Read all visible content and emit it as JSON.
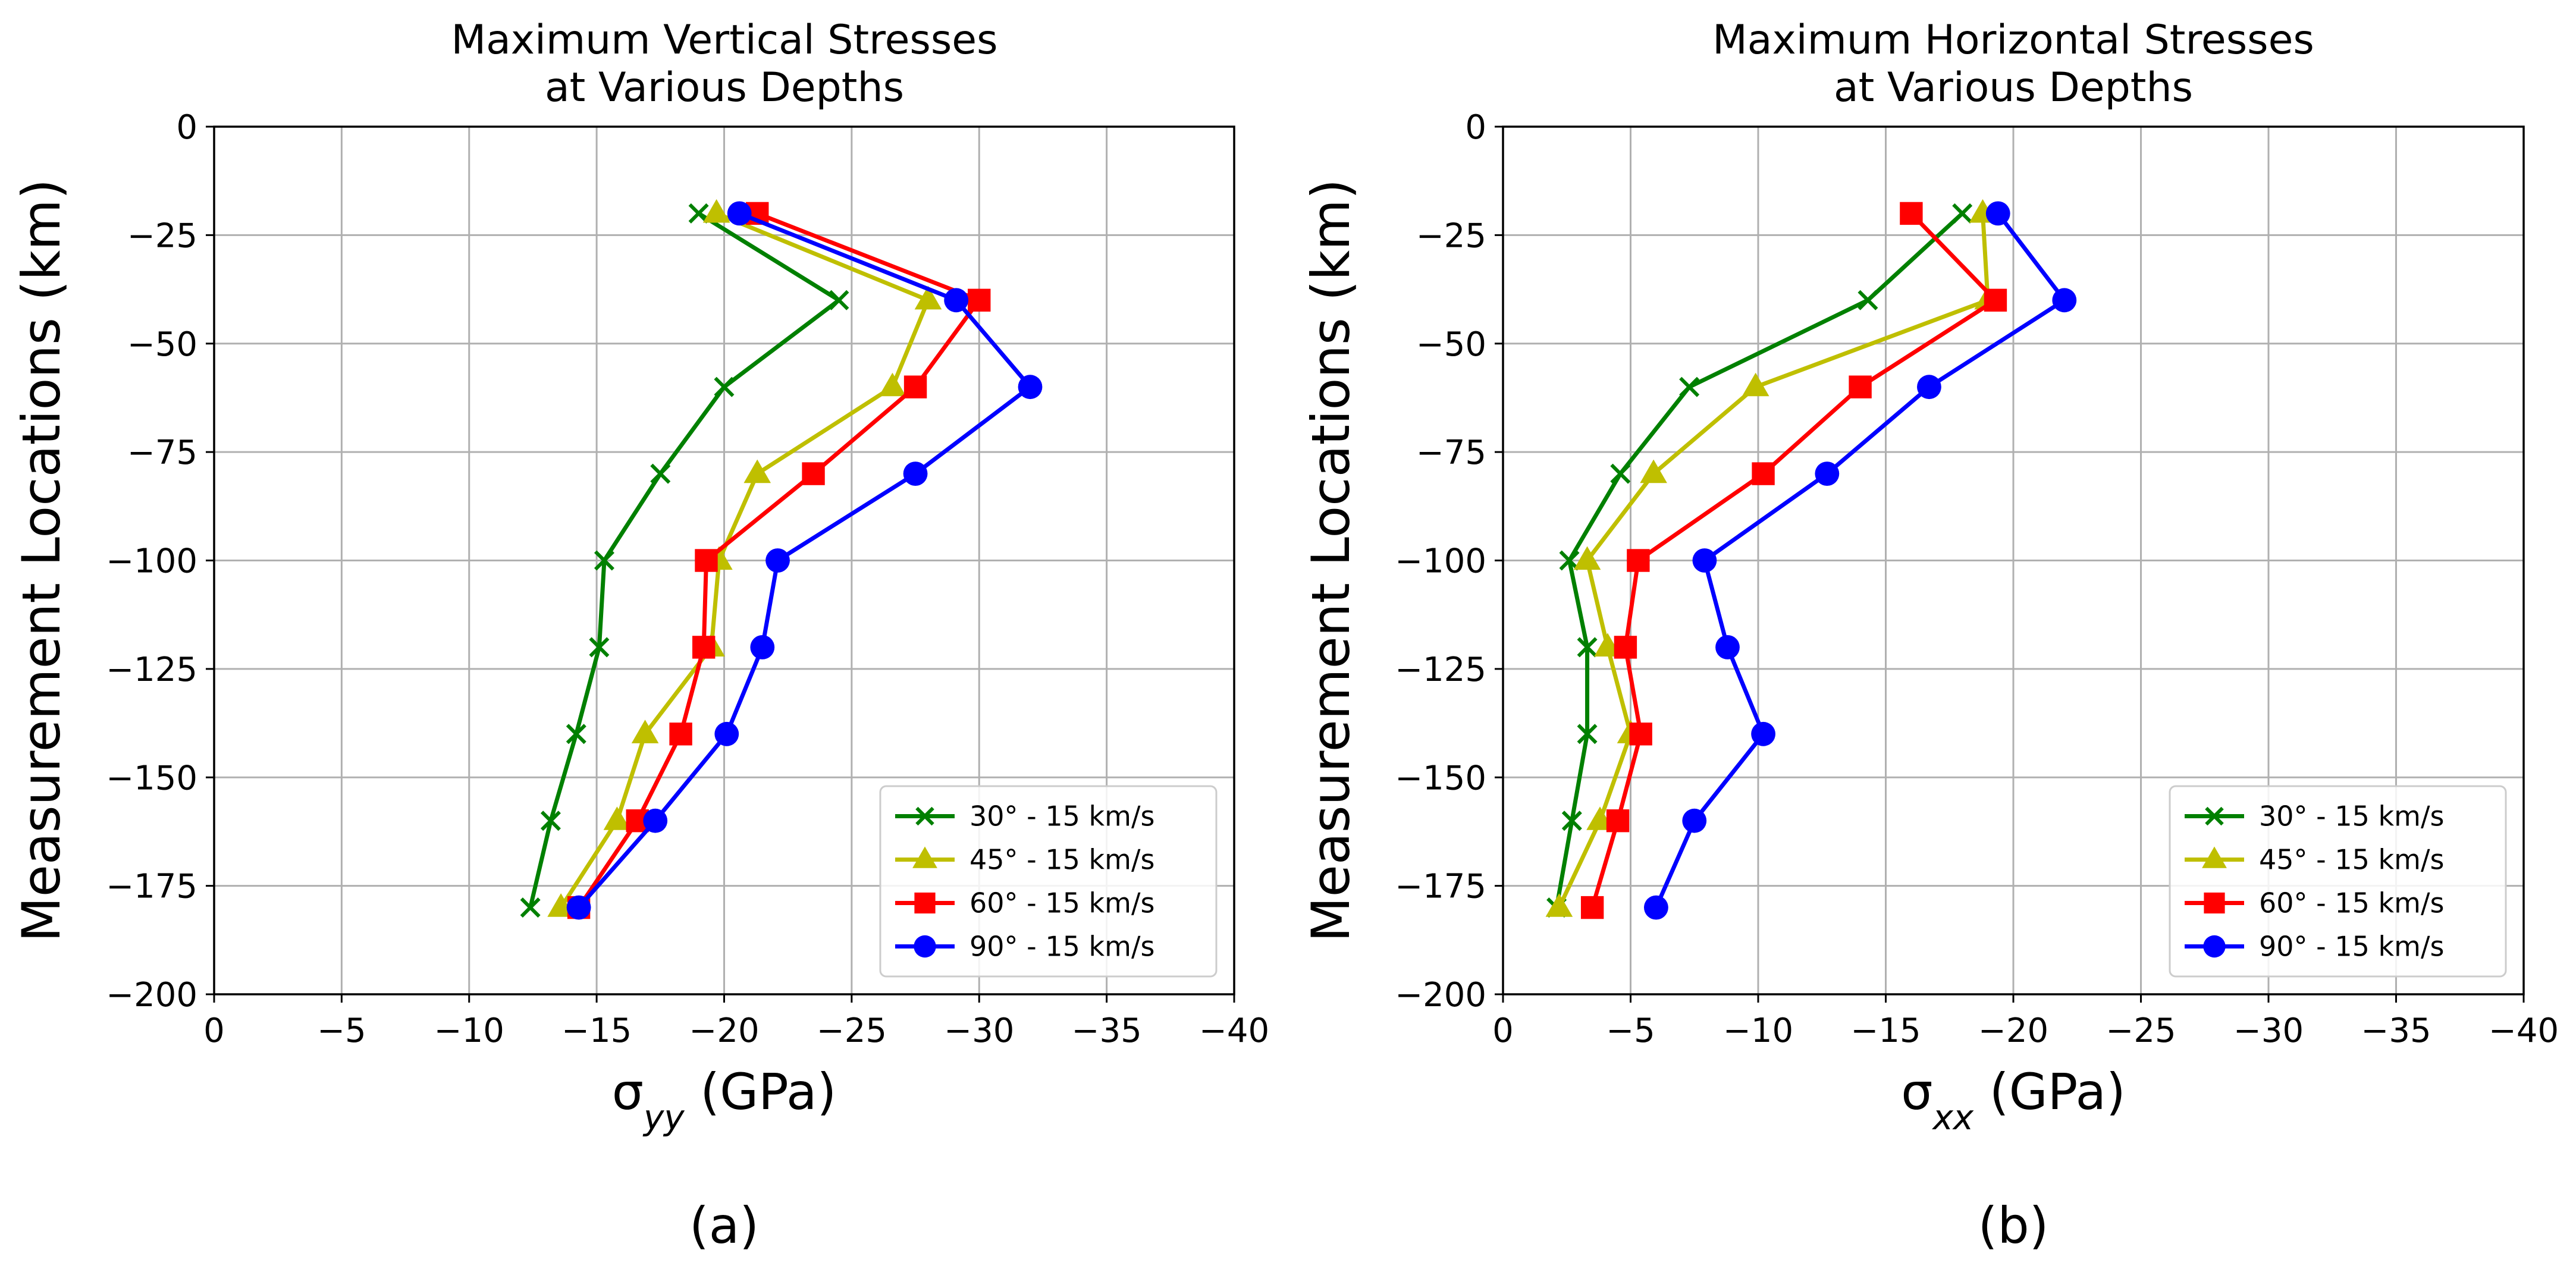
{
  "chart_data": [
    {
      "type": "line",
      "panel_label": "(a)",
      "title_lines": [
        "Maximum Vertical Stresses",
        "at Various Depths"
      ],
      "xlabel": "σyy (GPa)",
      "xlabel_symbol": "σ",
      "xlabel_subscript": "yy",
      "xlabel_unit": " (GPa)",
      "ylabel": "Measurement Locations (km)",
      "xlim": [
        0,
        -40
      ],
      "ylim": [
        -200,
        0
      ],
      "xticks": [
        0,
        -5,
        -10,
        -15,
        -20,
        -25,
        -30,
        -35,
        -40
      ],
      "yticks": [
        0,
        -25,
        -50,
        -75,
        -100,
        -125,
        -150,
        -175,
        -200
      ],
      "xtick_labels": [
        "0",
        "−5",
        "−10",
        "−15",
        "−20",
        "−25",
        "−30",
        "−35",
        "−40"
      ],
      "ytick_labels": [
        "0",
        "−25",
        "−50",
        "−75",
        "−100",
        "−125",
        "−150",
        "−175",
        "−200"
      ],
      "grid": true,
      "legend_position": "lower-right",
      "series": [
        {
          "name": "30° - 15 km/s",
          "color": "#008000",
          "marker": "x",
          "x": [
            -19,
            -24.5,
            -20,
            -17.5,
            -15.3,
            -15.1,
            -14.2,
            -13.2,
            -12.4
          ],
          "y": [
            -20,
            -40,
            -60,
            -80,
            -100,
            -120,
            -140,
            -160,
            -180
          ]
        },
        {
          "name": "45° - 15 km/s",
          "color": "#bfbf00",
          "marker": "triangle",
          "x": [
            -19.7,
            -28,
            -26.6,
            -21.3,
            -19.8,
            -19.5,
            -16.9,
            -15.8,
            -13.6
          ],
          "y": [
            -20,
            -40,
            -60,
            -80,
            -100,
            -120,
            -140,
            -160,
            -180
          ]
        },
        {
          "name": "60° - 15 km/s",
          "color": "#ff0000",
          "marker": "square",
          "x": [
            -21.3,
            -30,
            -27.5,
            -23.5,
            -19.3,
            -19.2,
            -18.3,
            -16.6,
            -14.3
          ],
          "y": [
            -20,
            -40,
            -60,
            -80,
            -100,
            -120,
            -140,
            -160,
            -180
          ]
        },
        {
          "name": "90° - 15 km/s",
          "color": "#0000ff",
          "marker": "circle",
          "x": [
            -20.6,
            -29.1,
            -32,
            -27.5,
            -22.1,
            -21.5,
            -20.1,
            -17.3,
            -14.3
          ],
          "y": [
            -20,
            -40,
            -60,
            -80,
            -100,
            -120,
            -140,
            -160,
            -180
          ]
        }
      ]
    },
    {
      "type": "line",
      "panel_label": "(b)",
      "title_lines": [
        "Maximum Horizontal Stresses",
        "at Various Depths"
      ],
      "xlabel": "σxx (GPa)",
      "xlabel_symbol": "σ",
      "xlabel_subscript": "xx",
      "xlabel_unit": " (GPa)",
      "ylabel": "Measurement Locations (km)",
      "xlim": [
        0,
        -40
      ],
      "ylim": [
        -200,
        0
      ],
      "xticks": [
        0,
        -5,
        -10,
        -15,
        -20,
        -25,
        -30,
        -35,
        -40
      ],
      "yticks": [
        0,
        -25,
        -50,
        -75,
        -100,
        -125,
        -150,
        -175,
        -200
      ],
      "xtick_labels": [
        "0",
        "−5",
        "−10",
        "−15",
        "−20",
        "−25",
        "−30",
        "−35",
        "−40"
      ],
      "ytick_labels": [
        "0",
        "−25",
        "−50",
        "−75",
        "−100",
        "−125",
        "−150",
        "−175",
        "−200"
      ],
      "grid": true,
      "legend_position": "lower-right",
      "series": [
        {
          "name": "30° - 15 km/s",
          "color": "#008000",
          "marker": "x",
          "x": [
            -18,
            -14.3,
            -7.3,
            -4.6,
            -2.6,
            -3.3,
            -3.3,
            -2.7,
            -2.1
          ],
          "y": [
            -20,
            -40,
            -60,
            -80,
            -100,
            -120,
            -140,
            -160,
            -180
          ]
        },
        {
          "name": "45° - 15 km/s",
          "color": "#bfbf00",
          "marker": "triangle",
          "x": [
            -18.8,
            -19,
            -9.9,
            -5.9,
            -3.3,
            -4.1,
            -5,
            -3.8,
            -2.2
          ],
          "y": [
            -20,
            -40,
            -60,
            -80,
            -100,
            -120,
            -140,
            -160,
            -180
          ]
        },
        {
          "name": "60° - 15 km/s",
          "color": "#ff0000",
          "marker": "square",
          "x": [
            -16,
            -19.3,
            -14,
            -10.2,
            -5.3,
            -4.8,
            -5.4,
            -4.5,
            -3.5
          ],
          "y": [
            -20,
            -40,
            -60,
            -80,
            -100,
            -120,
            -140,
            -160,
            -180
          ]
        },
        {
          "name": "90° - 15 km/s",
          "color": "#0000ff",
          "marker": "circle",
          "x": [
            -19.4,
            -22,
            -16.7,
            -12.7,
            -7.9,
            -8.8,
            -10.2,
            -7.5,
            -6
          ],
          "y": [
            -20,
            -40,
            -60,
            -80,
            -100,
            -120,
            -140,
            -160,
            -180
          ]
        }
      ]
    }
  ]
}
